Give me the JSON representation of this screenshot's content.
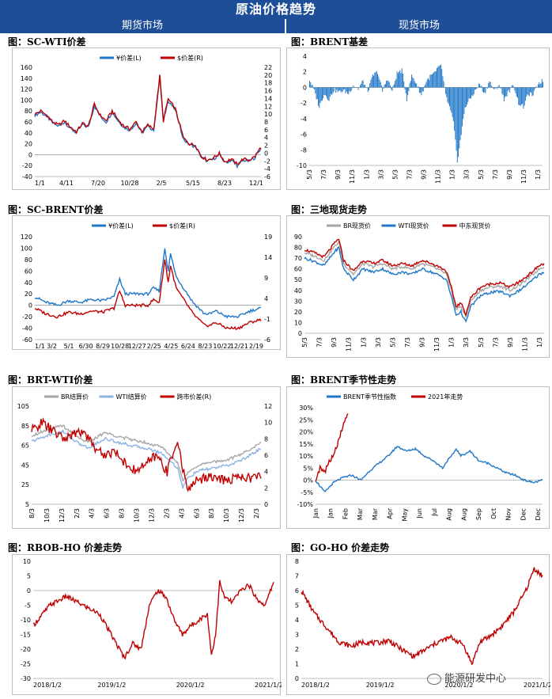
{
  "header": {
    "title": "原油价格趋势",
    "left_column": "期货市场",
    "right_column": "现货市场"
  },
  "watermark": "能源研发中心",
  "colors": {
    "header_bg": "#1f4e99",
    "blue": "#1f77c9",
    "red": "#c00000",
    "gray": "#a6a6a6",
    "lightblue": "#8db3e2"
  },
  "chart_data": [
    {
      "id": "sc-wti",
      "type": "line",
      "title": "图：SC-WTI价差",
      "series": [
        {
          "name": "¥价差(L)",
          "color": "#1f77c9"
        },
        {
          "name": "$价差(R)",
          "color": "#c00000"
        }
      ],
      "x_ticks": [
        "1/1",
        "4/11",
        "7/20",
        "10/28",
        "2/5",
        "5/15",
        "8/23",
        "12/1"
      ],
      "y_left": {
        "min": -40,
        "max": 160,
        "ticks": [
          -40,
          -20,
          0,
          20,
          40,
          60,
          80,
          100,
          120,
          140,
          160
        ]
      },
      "y_right": {
        "min": -6,
        "max": 22,
        "ticks": [
          -6,
          -4,
          -2,
          0,
          2,
          4,
          6,
          8,
          10,
          12,
          14,
          16,
          18,
          20,
          22
        ]
      },
      "points": [
        [
          0,
          72
        ],
        [
          5,
          78
        ],
        [
          10,
          70
        ],
        [
          15,
          58
        ],
        [
          20,
          52
        ],
        [
          25,
          60
        ],
        [
          30,
          48
        ],
        [
          35,
          40
        ],
        [
          40,
          55
        ],
        [
          45,
          50
        ],
        [
          50,
          90
        ],
        [
          55,
          70
        ],
        [
          60,
          60
        ],
        [
          65,
          78
        ],
        [
          70,
          62
        ],
        [
          75,
          50
        ],
        [
          80,
          45
        ],
        [
          85,
          58
        ],
        [
          90,
          40
        ],
        [
          95,
          52
        ],
        [
          100,
          45
        ],
        [
          105,
          142
        ],
        [
          108,
          60
        ],
        [
          112,
          100
        ],
        [
          118,
          82
        ],
        [
          125,
          28
        ],
        [
          130,
          18
        ],
        [
          135,
          15
        ],
        [
          140,
          -5
        ],
        [
          145,
          -12
        ],
        [
          150,
          -8
        ],
        [
          155,
          0
        ],
        [
          160,
          -15
        ],
        [
          165,
          -10
        ],
        [
          170,
          -20
        ],
        [
          175,
          -10
        ],
        [
          180,
          -12
        ],
        [
          185,
          -5
        ],
        [
          190,
          12
        ]
      ],
      "points_n": 190
    },
    {
      "id": "brent-basis",
      "type": "bar",
      "title": "图：BRENT基差",
      "color": "#1f77c9",
      "x_ticks": [
        "5/3",
        "7/3",
        "9/3",
        "11/3",
        "1/3",
        "3/3",
        "5/3",
        "7/3",
        "9/3",
        "11/3",
        "1/3",
        "3/3",
        "5/3",
        "7/3",
        "9/3",
        "11/3",
        "1/3"
      ],
      "y": {
        "min": -10,
        "max": 4,
        "ticks": [
          -10,
          -8,
          -6,
          -4,
          -2,
          0,
          2,
          4
        ]
      },
      "points": [
        [
          0,
          1.0
        ],
        [
          5,
          -0.5
        ],
        [
          10,
          -2.5
        ],
        [
          15,
          -0.8
        ],
        [
          20,
          -1.5
        ],
        [
          25,
          -0.3
        ],
        [
          30,
          -0.6
        ],
        [
          35,
          -0.4
        ],
        [
          40,
          -0.8
        ],
        [
          45,
          0.3
        ],
        [
          50,
          -0.2
        ],
        [
          55,
          0.8
        ],
        [
          60,
          -0.5
        ],
        [
          65,
          1.5
        ],
        [
          70,
          2.0
        ],
        [
          75,
          -0.5
        ],
        [
          80,
          1.2
        ],
        [
          85,
          -0.5
        ],
        [
          90,
          1.8
        ],
        [
          95,
          2.2
        ],
        [
          100,
          -1.5
        ],
        [
          105,
          1.5
        ],
        [
          110,
          0.5
        ],
        [
          115,
          -1.0
        ],
        [
          120,
          0.8
        ],
        [
          125,
          1.5
        ],
        [
          130,
          2.0
        ],
        [
          135,
          3.0
        ],
        [
          140,
          -1.0
        ],
        [
          145,
          -3.0
        ],
        [
          148,
          -4.5
        ],
        [
          152,
          -9.5
        ],
        [
          156,
          -6.0
        ],
        [
          160,
          -2.5
        ],
        [
          165,
          -1.5
        ],
        [
          170,
          -0.5
        ],
        [
          175,
          0.5
        ],
        [
          180,
          -0.8
        ],
        [
          185,
          0.8
        ],
        [
          190,
          -0.5
        ],
        [
          195,
          0.4
        ],
        [
          200,
          -1.5
        ],
        [
          205,
          -0.5
        ],
        [
          210,
          0.3
        ],
        [
          215,
          -2.0
        ],
        [
          220,
          -2.5
        ],
        [
          225,
          -0.8
        ],
        [
          230,
          -1.0
        ],
        [
          235,
          0.5
        ],
        [
          240,
          0.9
        ]
      ],
      "points_n": 240
    },
    {
      "id": "sc-brent",
      "type": "line",
      "title": "图：SC-BRENT价差",
      "series": [
        {
          "name": "¥价差(L)",
          "color": "#1f77c9"
        },
        {
          "name": "$价差(R)",
          "color": "#c00000"
        }
      ],
      "x_ticks": [
        "1/1",
        "3/2",
        "5/1",
        "6/30",
        "8/29",
        "10/28",
        "12/27",
        "2/25",
        "4/25",
        "6/24",
        "8/23",
        "10/22",
        "12/21",
        "2/19"
      ],
      "y_left": {
        "min": -60,
        "max": 120,
        "ticks": [
          -60,
          -40,
          -20,
          0,
          20,
          40,
          60,
          80,
          100,
          120
        ]
      },
      "y_right": {
        "min": -6,
        "max": 19,
        "ticks": [
          -6,
          -1,
          4,
          9,
          14,
          19
        ]
      },
      "points": [
        [
          0,
          15
        ],
        [
          10,
          5
        ],
        [
          20,
          0
        ],
        [
          30,
          8
        ],
        [
          40,
          5
        ],
        [
          50,
          10
        ],
        [
          60,
          8
        ],
        [
          70,
          15
        ],
        [
          75,
          45
        ],
        [
          80,
          20
        ],
        [
          90,
          20
        ],
        [
          100,
          20
        ],
        [
          105,
          30
        ],
        [
          110,
          25
        ],
        [
          115,
          100
        ],
        [
          118,
          60
        ],
        [
          120,
          90
        ],
        [
          125,
          50
        ],
        [
          130,
          35
        ],
        [
          140,
          5
        ],
        [
          150,
          -15
        ],
        [
          155,
          -15
        ],
        [
          160,
          -10
        ],
        [
          170,
          -20
        ],
        [
          180,
          -20
        ],
        [
          190,
          -10
        ],
        [
          200,
          -5
        ]
      ],
      "points_n": 200
    },
    {
      "id": "spot-3",
      "type": "line",
      "title": "图：三地现货走势",
      "series": [
        {
          "name": "BR现货价",
          "color": "#a6a6a6"
        },
        {
          "name": "WTI现货价",
          "color": "#1f77c9"
        },
        {
          "name": "中东现货价",
          "color": "#c00000"
        }
      ],
      "x_ticks": [
        "5/3",
        "7/3",
        "9/3",
        "11/3",
        "1/3",
        "3/3",
        "5/3",
        "7/3",
        "9/3",
        "11/3",
        "1/3",
        "3/3",
        "5/3",
        "7/3",
        "9/3",
        "11/3",
        "1/3"
      ],
      "y": {
        "min": 0,
        "max": 90,
        "ticks": [
          0,
          10,
          20,
          30,
          40,
          50,
          60,
          70,
          80,
          90
        ]
      },
      "points": [
        [
          0,
          75
        ],
        [
          10,
          72
        ],
        [
          20,
          68
        ],
        [
          30,
          80
        ],
        [
          35,
          85
        ],
        [
          40,
          65
        ],
        [
          50,
          55
        ],
        [
          60,
          65
        ],
        [
          70,
          62
        ],
        [
          80,
          65
        ],
        [
          90,
          60
        ],
        [
          100,
          62
        ],
        [
          110,
          60
        ],
        [
          120,
          65
        ],
        [
          130,
          62
        ],
        [
          140,
          58
        ],
        [
          145,
          55
        ],
        [
          150,
          40
        ],
        [
          155,
          22
        ],
        [
          160,
          25
        ],
        [
          165,
          15
        ],
        [
          170,
          30
        ],
        [
          180,
          40
        ],
        [
          190,
          43
        ],
        [
          200,
          44
        ],
        [
          210,
          40
        ],
        [
          220,
          45
        ],
        [
          230,
          52
        ],
        [
          240,
          60
        ],
        [
          245,
          62
        ]
      ],
      "points_n": 245
    },
    {
      "id": "brt-wti",
      "type": "line",
      "title": "图：BRT-WTI价差",
      "series": [
        {
          "name": "BR结算价",
          "color": "#a6a6a6"
        },
        {
          "name": "WTI结算价",
          "color": "#8db3e2"
        },
        {
          "name": "跨市价差(R)",
          "color": "#c00000"
        }
      ],
      "x_ticks": [
        "8/3",
        "10/3",
        "12/3",
        "2/3",
        "4/3",
        "6/3",
        "8/3",
        "10/3",
        "12/3",
        "2/3",
        "4/3",
        "6/3",
        "8/3",
        "10/3",
        "12/3",
        "2/3"
      ],
      "y_left": {
        "min": 5,
        "max": 105,
        "ticks": [
          5,
          25,
          45,
          65,
          85,
          105
        ]
      },
      "y_right": {
        "min": 0,
        "max": 12,
        "ticks": [
          0,
          2,
          4,
          6,
          8,
          10,
          12
        ]
      },
      "points": [
        [
          0,
          9
        ],
        [
          10,
          10
        ],
        [
          20,
          9
        ],
        [
          30,
          8
        ],
        [
          40,
          8.5
        ],
        [
          50,
          9
        ],
        [
          60,
          7
        ],
        [
          70,
          6
        ],
        [
          80,
          6.5
        ],
        [
          90,
          5
        ],
        [
          100,
          4
        ],
        [
          110,
          5
        ],
        [
          120,
          6
        ],
        [
          130,
          4
        ],
        [
          140,
          8
        ],
        [
          145,
          4
        ],
        [
          150,
          2
        ],
        [
          160,
          3
        ],
        [
          170,
          3.5
        ],
        [
          180,
          3
        ],
        [
          190,
          3
        ],
        [
          200,
          3.5
        ],
        [
          210,
          3.2
        ],
        [
          220,
          3.5
        ]
      ],
      "points_n": 220
    },
    {
      "id": "brent-seasonal",
      "type": "line",
      "title": "图：BRENT季节性走势",
      "series": [
        {
          "name": "BRENT季节性指数",
          "color": "#1f77c9"
        },
        {
          "name": "2021年走势",
          "color": "#c00000"
        }
      ],
      "x_ticks": [
        "Jan",
        "Jan",
        "Feb",
        "Mar",
        "Mar",
        "Apr",
        "May",
        "Jun",
        "Jul",
        "Aug",
        "Aug",
        "Sep",
        "Oct",
        "Nov",
        "Dec",
        "Dec"
      ],
      "y": {
        "min": -10,
        "max": 30,
        "ticks": [
          "-10%",
          "-5%",
          "0%",
          "5%",
          "10%",
          "15%",
          "20%",
          "25%",
          "30%"
        ]
      },
      "points": [
        [
          0,
          0
        ],
        [
          10,
          -5
        ],
        [
          20,
          -1
        ],
        [
          30,
          1
        ],
        [
          40,
          2
        ],
        [
          50,
          0
        ],
        [
          60,
          4
        ],
        [
          70,
          7
        ],
        [
          80,
          10
        ],
        [
          90,
          14
        ],
        [
          100,
          12
        ],
        [
          110,
          13
        ],
        [
          120,
          10
        ],
        [
          130,
          8
        ],
        [
          140,
          5
        ],
        [
          145,
          8
        ],
        [
          150,
          10
        ],
        [
          155,
          13
        ],
        [
          160,
          10
        ],
        [
          170,
          12
        ],
        [
          180,
          8
        ],
        [
          190,
          7
        ],
        [
          200,
          5
        ],
        [
          210,
          3
        ],
        [
          220,
          2
        ],
        [
          230,
          0
        ],
        [
          240,
          -1
        ],
        [
          250,
          0
        ]
      ],
      "points_n": 250
    },
    {
      "id": "rbob-ho",
      "type": "line",
      "title": "图：RBOB-HO 价差走势",
      "color": "#c00000",
      "x_ticks": [
        "2018/1/2",
        "2019/1/2",
        "2020/1/2",
        "2021/1/2"
      ],
      "y": {
        "min": -30,
        "max": 10,
        "ticks": [
          -30,
          -25,
          -20,
          -15,
          -10,
          -5,
          0,
          5,
          10
        ]
      },
      "points": [
        [
          0,
          -12
        ],
        [
          20,
          -5
        ],
        [
          40,
          -2
        ],
        [
          60,
          -5
        ],
        [
          80,
          -8
        ],
        [
          100,
          -18
        ],
        [
          110,
          -23
        ],
        [
          120,
          -18
        ],
        [
          130,
          -20
        ],
        [
          140,
          -5
        ],
        [
          150,
          0
        ],
        [
          160,
          -2
        ],
        [
          170,
          -10
        ],
        [
          180,
          -15
        ],
        [
          190,
          -12
        ],
        [
          200,
          -10
        ],
        [
          210,
          -8
        ],
        [
          215,
          -22
        ],
        [
          220,
          -15
        ],
        [
          225,
          3
        ],
        [
          230,
          -2
        ],
        [
          240,
          -4
        ],
        [
          250,
          0
        ],
        [
          260,
          2
        ],
        [
          270,
          -3
        ],
        [
          280,
          -5
        ],
        [
          290,
          3
        ]
      ],
      "points_n": 290
    },
    {
      "id": "go-ho",
      "type": "line",
      "title": "图：GO-HO 价差走势",
      "color": "#c00000",
      "x_ticks": [
        "2018/1/2",
        "2019/1/2",
        "2020/1/2",
        "2021/1/2"
      ],
      "y": {
        "min": 0,
        "max": 8,
        "ticks": [
          0,
          1,
          2,
          3,
          4,
          5,
          6,
          7,
          8
        ]
      },
      "points": [
        [
          0,
          6
        ],
        [
          15,
          4.5
        ],
        [
          30,
          3.5
        ],
        [
          45,
          2.5
        ],
        [
          60,
          2.2
        ],
        [
          75,
          2.5
        ],
        [
          90,
          2.4
        ],
        [
          105,
          2.6
        ],
        [
          120,
          2.0
        ],
        [
          135,
          1.5
        ],
        [
          150,
          2.0
        ],
        [
          165,
          2.5
        ],
        [
          180,
          2.8
        ],
        [
          195,
          2.3
        ],
        [
          205,
          1.0
        ],
        [
          215,
          2.5
        ],
        [
          225,
          2.8
        ],
        [
          240,
          3.5
        ],
        [
          255,
          4.5
        ],
        [
          270,
          6.0
        ],
        [
          280,
          7.5
        ],
        [
          290,
          7.0
        ]
      ],
      "points_n": 290
    }
  ]
}
